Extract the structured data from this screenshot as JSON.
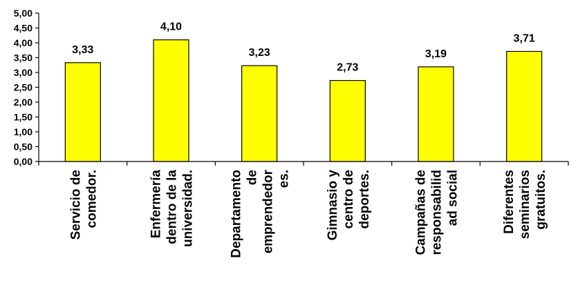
{
  "chart_data": {
    "type": "bar",
    "title": "",
    "xlabel": "",
    "ylabel": "",
    "ylim": [
      0,
      5
    ],
    "ytick_step": 0.5,
    "ytick_labels": [
      "0,00",
      "0,50",
      "1,00",
      "1,50",
      "2,00",
      "2,50",
      "3,00",
      "3,50",
      "4,00",
      "4,50",
      "5,00"
    ],
    "grid": false,
    "legend": "none",
    "bar_color": "#FFFF00",
    "bar_edge_color": "#000000",
    "categories": [
      [
        "Servicio de",
        "comedor."
      ],
      [
        "Enfermería",
        "dentro de la",
        "universidad."
      ],
      [
        "Departamento",
        "de",
        "emprendedor",
        "es."
      ],
      [
        "Gimnasio y",
        "centro de",
        "deportes."
      ],
      [
        "Campañas de",
        "responsabilid",
        "ad social"
      ],
      [
        "Diferentes",
        "seminarios",
        "gratuitos."
      ]
    ],
    "values": [
      3.33,
      4.1,
      3.23,
      2.73,
      3.19,
      3.71
    ],
    "value_labels": [
      "3,33",
      "4,10",
      "3,23",
      "2,73",
      "3,19",
      "3,71"
    ]
  }
}
